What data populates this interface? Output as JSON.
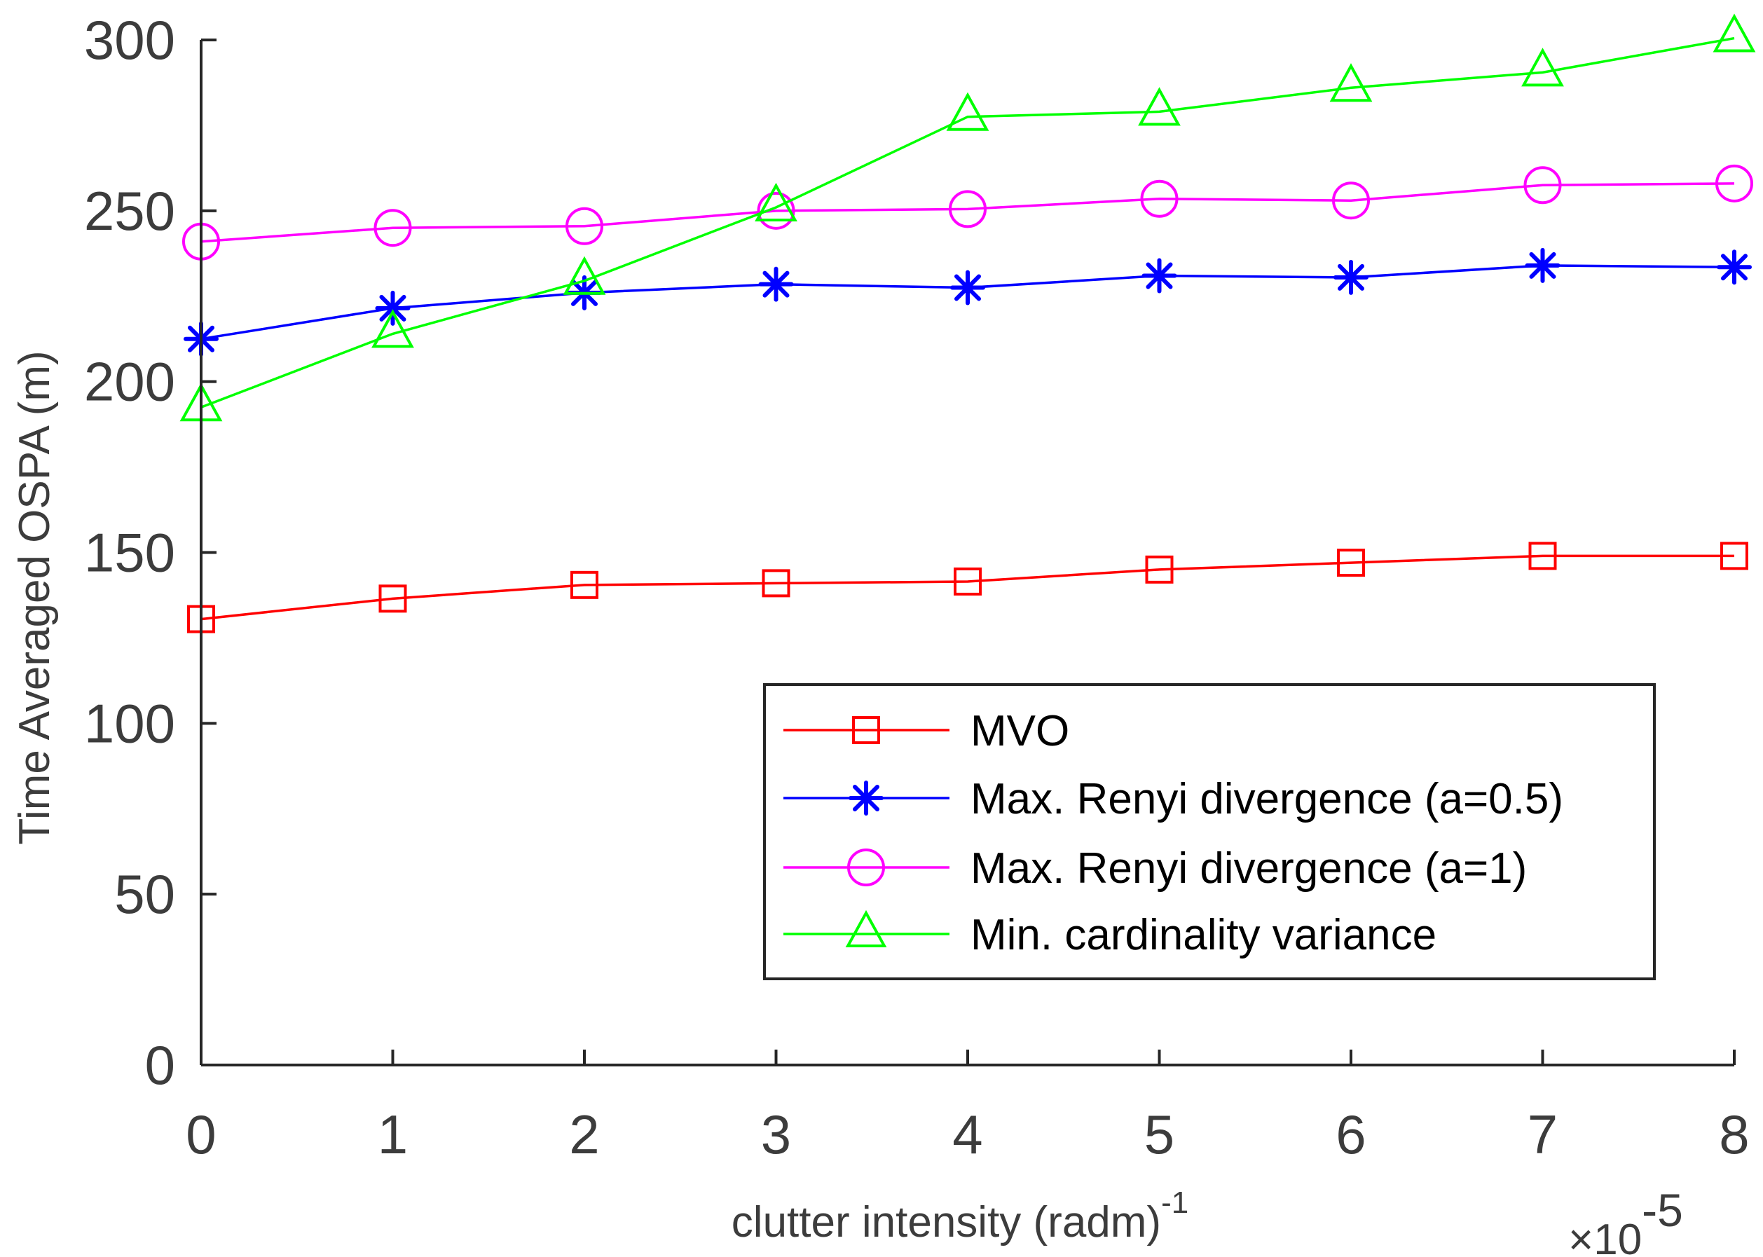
{
  "chart_data": {
    "type": "line",
    "x": [
      0,
      1,
      2,
      3,
      4,
      5,
      6,
      7,
      8
    ],
    "xlim": [
      0,
      8
    ],
    "ylim": [
      0,
      300
    ],
    "xticks": [
      "0",
      "1",
      "2",
      "3",
      "4",
      "5",
      "6",
      "7",
      "8"
    ],
    "yticks": [
      "0",
      "50",
      "100",
      "150",
      "200",
      "250",
      "300"
    ],
    "xlabel": "clutter intensity (radm)",
    "xlabel_superscript": "-1",
    "x_multiplier_base": "×10",
    "x_multiplier_exp": "-5",
    "ylabel": "Time Averaged OSPA (m)",
    "legend_position": "bottom-right",
    "series": [
      {
        "name": "MVO",
        "color": "#ff0000",
        "marker": "square",
        "values": [
          130.5,
          136.5,
          140.5,
          141,
          141.5,
          145,
          147,
          149,
          149
        ]
      },
      {
        "name": "Max. Renyi divergence (a=0.5)",
        "color": "#0000ff",
        "marker": "asterisk",
        "values": [
          212.5,
          221.5,
          226,
          228.5,
          227.5,
          231,
          230.5,
          234,
          233.5
        ]
      },
      {
        "name": "Max. Renyi divergence (a=1)",
        "color": "#ff00ff",
        "marker": "circle",
        "values": [
          241,
          245,
          245.5,
          250,
          250.5,
          253.5,
          253,
          257.5,
          258
        ]
      },
      {
        "name": "Min. cardinality variance",
        "color": "#00ff00",
        "marker": "triangle",
        "values": [
          192.5,
          214,
          229.5,
          251,
          277.5,
          279,
          286,
          290.5,
          300.5
        ]
      }
    ]
  }
}
